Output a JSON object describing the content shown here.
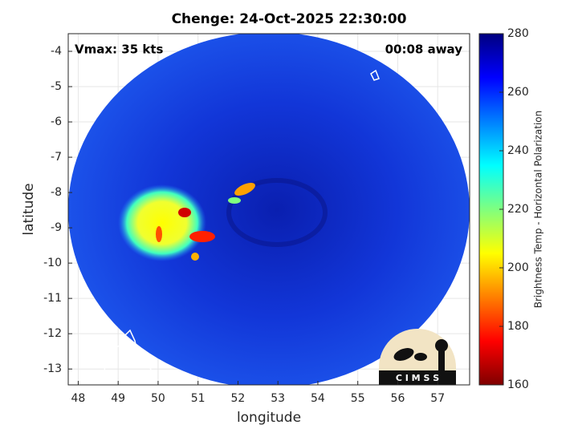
{
  "chart_data": {
    "type": "map",
    "title": "Chenge: 24-Oct-2025 22:30:00",
    "annotations": [
      "Vmax: 35 kts",
      "00:08 away"
    ],
    "xlabel": "longitude",
    "ylabel": "latitude",
    "xlim": [
      47.75,
      57.8
    ],
    "ylim": [
      -13.45,
      -3.5
    ],
    "xticks": [
      48,
      49,
      50,
      51,
      52,
      53,
      54,
      55,
      56,
      57
    ],
    "yticks": [
      -13,
      -12,
      -11,
      -10,
      -9,
      -8,
      -7,
      -6,
      -5,
      -4
    ],
    "grid": true,
    "colorbar": {
      "label": "Brightness Temp - Horizontal Polarization",
      "lim": [
        160,
        280
      ],
      "ticks": [
        160,
        180,
        200,
        220,
        240,
        260,
        280
      ],
      "colormap": [
        "#7f0000",
        "#ff0000",
        "#ff7f00",
        "#ffff00",
        "#7fff7f",
        "#00ffff",
        "#007fff",
        "#0000ff",
        "#00007f"
      ]
    },
    "logo": "C I M S S"
  }
}
